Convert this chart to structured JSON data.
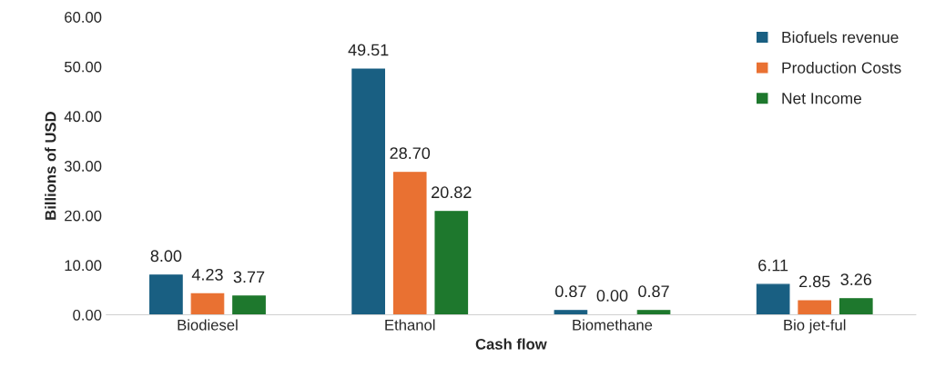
{
  "chart_data": {
    "type": "bar",
    "xlabel": "Cash flow",
    "ylabel": "Billions of USD",
    "categories": [
      "Biodiesel",
      "Ethanol",
      "Biomethane",
      "Bio jet-ful"
    ],
    "series": [
      {
        "name": "Biofuels revenue",
        "color": "#195f82",
        "values": [
          8.0,
          49.51,
          0.87,
          6.11
        ],
        "value_labels": [
          "8.00",
          "49.51",
          "0.87",
          "6.11"
        ]
      },
      {
        "name": "Production Costs",
        "color": "#e97132",
        "values": [
          4.23,
          28.7,
          0.0,
          2.85
        ],
        "value_labels": [
          "4.23",
          "28.70",
          "0.00",
          "2.85"
        ]
      },
      {
        "name": "Net Income",
        "color": "#1e782d",
        "values": [
          3.77,
          20.82,
          0.87,
          3.26
        ],
        "value_labels": [
          "3.77",
          "20.82",
          "0.87",
          "3.26"
        ]
      }
    ],
    "ylim": [
      0,
      60
    ],
    "yticks": [
      {
        "value": 0,
        "label": "0.00"
      },
      {
        "value": 10,
        "label": "10.00"
      },
      {
        "value": 20,
        "label": "20.00"
      },
      {
        "value": 30,
        "label": "30.00"
      },
      {
        "value": 40,
        "label": "40.00"
      },
      {
        "value": 50,
        "label": "50.00"
      },
      {
        "value": 60,
        "label": "60.00"
      }
    ],
    "grid": false,
    "legend": "top right"
  }
}
